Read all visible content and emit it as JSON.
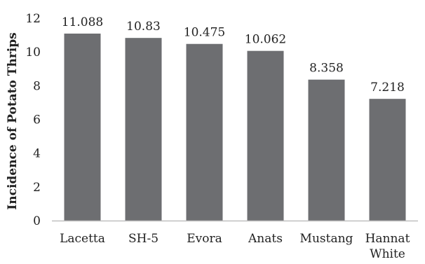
{
  "chart_data": {
    "type": "bar",
    "categories": [
      "Lacetta",
      "SH-5",
      "Evora",
      "Anats",
      "Mustang",
      "Hannat White"
    ],
    "values": [
      11.088,
      10.83,
      10.475,
      10.062,
      8.358,
      7.218
    ],
    "data_labels": [
      "11.088",
      "10.83",
      "10.475",
      "10.062",
      "8.358",
      "7.218"
    ],
    "title": "",
    "xlabel": "",
    "ylabel": "Incidence of Potato Thrips",
    "ylim": [
      0,
      12
    ],
    "yticks": [
      "0",
      "2",
      "4",
      "6",
      "8",
      "10",
      "12"
    ],
    "grid": false,
    "legend": "none",
    "bar_color": "#6d6e71",
    "axis_color": "#bfbfbf"
  }
}
